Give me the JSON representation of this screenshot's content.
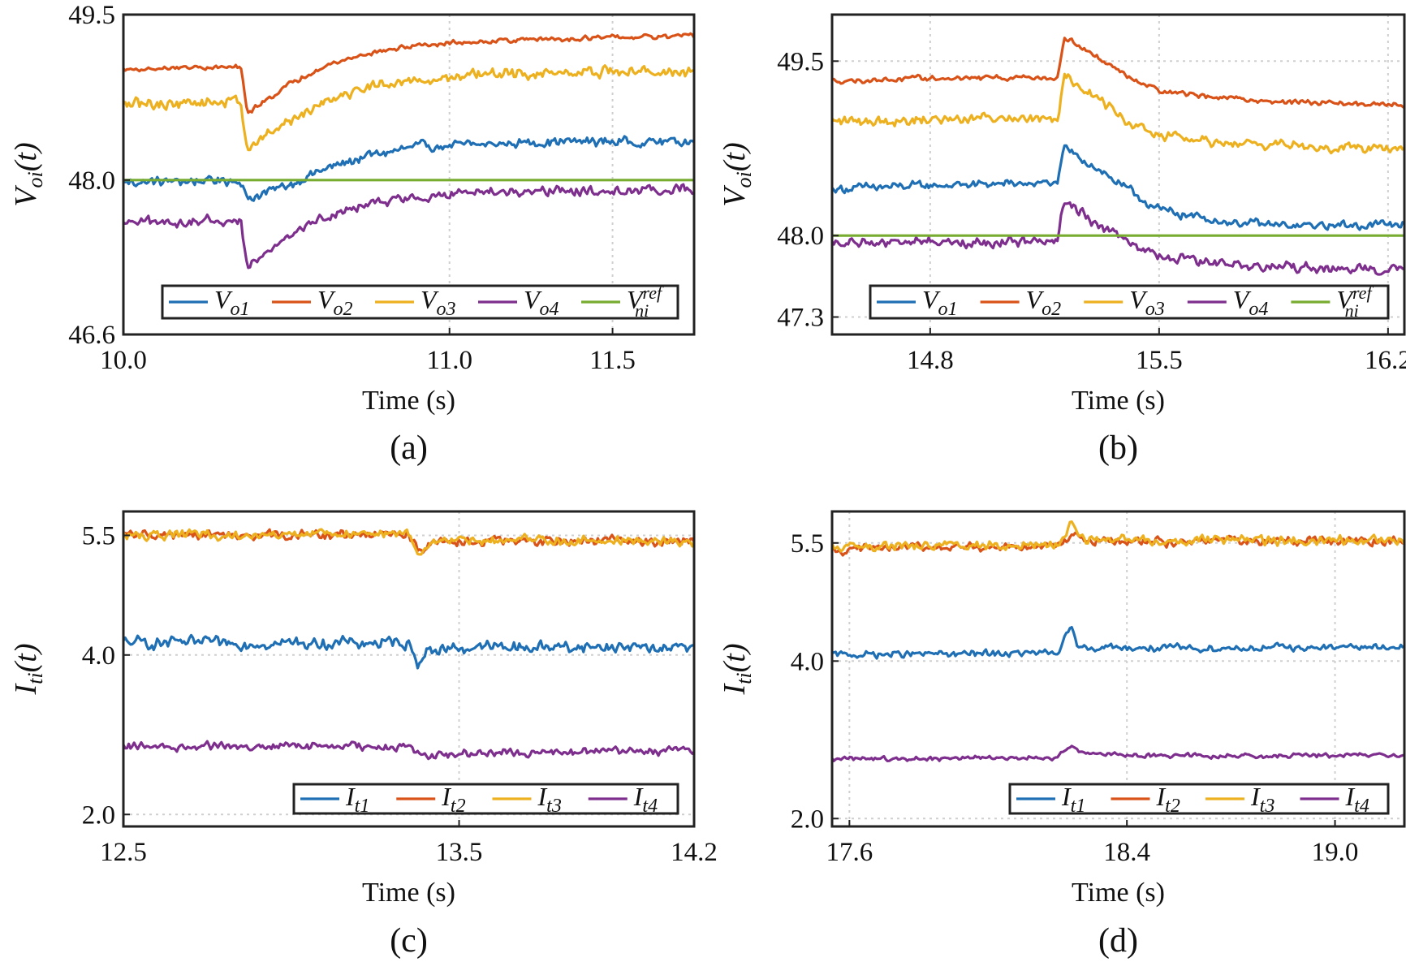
{
  "colors": {
    "blue": "#1f6fb5",
    "orange": "#d95319",
    "yellow": "#edb120",
    "purple": "#7e2f8e",
    "green": "#77ac30",
    "axis": "#222222",
    "grid": "#cfcfcf"
  },
  "chart_data": [
    {
      "type": "line",
      "caption": "(a)",
      "xlabel": "Time (s)",
      "ylabel": {
        "main": "V",
        "sub": "oi",
        "arg": "(t)"
      },
      "xlim": [
        10.0,
        11.75
      ],
      "ylim": [
        46.6,
        49.5
      ],
      "xticks": [
        {
          "v": 10.0,
          "label": "10.0"
        },
        {
          "v": 11.0,
          "label": "11.0"
        },
        {
          "v": 11.5,
          "label": "11.5"
        }
      ],
      "yticks": [
        {
          "v": 46.6,
          "label": "46.6"
        },
        {
          "v": 48.0,
          "label": "48.0"
        },
        {
          "v": 49.5,
          "label": "49.5"
        }
      ],
      "grid": true,
      "legend_position": "bottom",
      "series": [
        {
          "name": "V_o1",
          "legend": {
            "main": "V",
            "sub": "o1",
            "sup": ""
          },
          "color": "blue",
          "noise": 0.03,
          "x": [
            10.0,
            10.2,
            10.36,
            10.38,
            10.4,
            10.5,
            10.6,
            10.75,
            10.9,
            11.1,
            11.3,
            11.5,
            11.75
          ],
          "y": [
            47.98,
            47.99,
            48.0,
            47.82,
            47.85,
            47.95,
            48.08,
            48.22,
            48.3,
            48.32,
            48.35,
            48.35,
            48.35
          ]
        },
        {
          "name": "V_o2",
          "legend": {
            "main": "V",
            "sub": "o2",
            "sup": ""
          },
          "color": "orange",
          "noise": 0.015,
          "x": [
            10.0,
            10.2,
            10.36,
            10.38,
            10.4,
            10.5,
            10.6,
            10.75,
            10.9,
            11.1,
            11.3,
            11.5,
            11.75
          ],
          "y": [
            49.0,
            49.02,
            49.02,
            48.6,
            48.65,
            48.85,
            49.02,
            49.15,
            49.22,
            49.26,
            49.28,
            49.29,
            49.3
          ]
        },
        {
          "name": "V_o3",
          "legend": {
            "main": "V",
            "sub": "o3",
            "sup": ""
          },
          "color": "yellow",
          "noise": 0.035,
          "x": [
            10.0,
            10.2,
            10.36,
            10.38,
            10.4,
            10.5,
            10.6,
            10.75,
            10.9,
            11.1,
            11.3,
            11.5,
            11.75
          ],
          "y": [
            48.68,
            48.7,
            48.72,
            48.28,
            48.32,
            48.52,
            48.7,
            48.85,
            48.92,
            48.95,
            48.97,
            48.98,
            48.98
          ]
        },
        {
          "name": "V_o4",
          "legend": {
            "main": "V",
            "sub": "o4",
            "sup": ""
          },
          "color": "purple",
          "noise": 0.03,
          "x": [
            10.0,
            10.2,
            10.36,
            10.38,
            10.4,
            10.5,
            10.6,
            10.75,
            10.9,
            11.1,
            11.3,
            11.5,
            11.75
          ],
          "y": [
            47.6,
            47.62,
            47.63,
            47.22,
            47.28,
            47.5,
            47.65,
            47.78,
            47.85,
            47.88,
            47.9,
            47.9,
            47.92
          ]
        },
        {
          "name": "V_ni^ref",
          "legend": {
            "main": "V",
            "sub": "ni",
            "sup": "ref"
          },
          "color": "green",
          "noise": 0,
          "x": [
            10.0,
            11.75
          ],
          "y": [
            48.0,
            48.0
          ]
        }
      ]
    },
    {
      "type": "line",
      "caption": "(b)",
      "xlabel": "Time (s)",
      "ylabel": {
        "main": "V",
        "sub": "oi",
        "arg": "(t)"
      },
      "xlim": [
        14.5,
        16.25
      ],
      "ylim": [
        47.15,
        49.9
      ],
      "xticks": [
        {
          "v": 14.8,
          "label": "14.8"
        },
        {
          "v": 15.5,
          "label": "15.5"
        },
        {
          "v": 16.2,
          "label": "16.2"
        }
      ],
      "yticks": [
        {
          "v": 47.3,
          "label": "47.3"
        },
        {
          "v": 48.0,
          "label": "48.0"
        },
        {
          "v": 49.5,
          "label": "49.5"
        }
      ],
      "grid": true,
      "legend_position": "bottom",
      "series": [
        {
          "name": "V_o1",
          "legend": {
            "main": "V",
            "sub": "o1",
            "sup": ""
          },
          "color": "blue",
          "noise": 0.025,
          "x": [
            14.5,
            14.8,
            15.1,
            15.19,
            15.21,
            15.3,
            15.4,
            15.5,
            15.7,
            15.9,
            16.25
          ],
          "y": [
            48.4,
            48.43,
            48.45,
            48.45,
            48.75,
            48.6,
            48.4,
            48.22,
            48.12,
            48.08,
            48.1
          ]
        },
        {
          "name": "V_o2",
          "legend": {
            "main": "V",
            "sub": "o2",
            "sup": ""
          },
          "color": "orange",
          "noise": 0.015,
          "x": [
            14.5,
            14.8,
            15.1,
            15.19,
            15.21,
            15.3,
            15.4,
            15.5,
            15.7,
            15.9,
            16.25
          ],
          "y": [
            49.33,
            49.35,
            49.36,
            49.36,
            49.72,
            49.55,
            49.38,
            49.25,
            49.18,
            49.15,
            49.12
          ]
        },
        {
          "name": "V_o3",
          "legend": {
            "main": "V",
            "sub": "o3",
            "sup": ""
          },
          "color": "yellow",
          "noise": 0.03,
          "x": [
            14.5,
            14.8,
            15.1,
            15.19,
            15.21,
            15.3,
            15.4,
            15.5,
            15.7,
            15.9,
            16.25
          ],
          "y": [
            48.98,
            49.0,
            49.02,
            49.02,
            49.4,
            49.2,
            49.0,
            48.85,
            48.8,
            48.78,
            48.75
          ]
        },
        {
          "name": "V_o4",
          "legend": {
            "main": "V",
            "sub": "o4",
            "sup": ""
          },
          "color": "purple",
          "noise": 0.03,
          "x": [
            14.5,
            14.8,
            15.1,
            15.19,
            15.21,
            15.3,
            15.4,
            15.5,
            15.7,
            15.9,
            16.25
          ],
          "y": [
            47.93,
            47.95,
            47.95,
            47.95,
            48.3,
            48.12,
            47.95,
            47.82,
            47.75,
            47.72,
            47.7
          ]
        },
        {
          "name": "V_ni^ref",
          "legend": {
            "main": "V",
            "sub": "ni",
            "sup": "ref"
          },
          "color": "green",
          "noise": 0,
          "x": [
            14.5,
            16.25
          ],
          "y": [
            48.0,
            48.0
          ]
        }
      ]
    },
    {
      "type": "line",
      "caption": "(c)",
      "xlabel": "Time (s)",
      "ylabel": {
        "main": "I",
        "sub": "ti",
        "arg": "(t)"
      },
      "xlim": [
        12.5,
        14.2
      ],
      "ylim": [
        1.85,
        5.8
      ],
      "xticks": [
        {
          "v": 12.5,
          "label": "12.5"
        },
        {
          "v": 13.5,
          "label": "13.5"
        },
        {
          "v": 14.2,
          "label": "14.2"
        }
      ],
      "yticks": [
        {
          "v": 2.0,
          "label": "2.0"
        },
        {
          "v": 4.0,
          "label": "4.0"
        },
        {
          "v": 5.5,
          "label": "5.5"
        }
      ],
      "grid": true,
      "legend_position": "bottom-right",
      "series": [
        {
          "name": "I_t1",
          "legend": {
            "main": "I",
            "sub": "t1",
            "sup": ""
          },
          "color": "blue",
          "noise": 0.05,
          "x": [
            12.5,
            13.35,
            13.38,
            13.4,
            13.45,
            13.6,
            14.2
          ],
          "y": [
            4.15,
            4.15,
            3.9,
            4.05,
            4.08,
            4.1,
            4.1
          ]
        },
        {
          "name": "I_t2",
          "legend": {
            "main": "I",
            "sub": "t2",
            "sup": ""
          },
          "color": "orange",
          "noise": 0.04,
          "x": [
            12.5,
            13.35,
            13.38,
            13.42,
            13.6,
            14.2
          ],
          "y": [
            5.5,
            5.5,
            5.3,
            5.42,
            5.43,
            5.43
          ]
        },
        {
          "name": "I_t3",
          "legend": {
            "main": "I",
            "sub": "t3",
            "sup": ""
          },
          "color": "yellow",
          "noise": 0.04,
          "x": [
            12.5,
            13.35,
            13.38,
            13.42,
            13.6,
            14.2
          ],
          "y": [
            5.5,
            5.52,
            5.25,
            5.42,
            5.44,
            5.44
          ]
        },
        {
          "name": "I_t4",
          "legend": {
            "main": "I",
            "sub": "t4",
            "sup": ""
          },
          "color": "purple",
          "noise": 0.035,
          "x": [
            12.5,
            13.35,
            13.4,
            13.6,
            14.2
          ],
          "y": [
            2.85,
            2.85,
            2.75,
            2.78,
            2.8
          ]
        }
      ]
    },
    {
      "type": "line",
      "caption": "(d)",
      "xlabel": "Time (s)",
      "ylabel": {
        "main": "I",
        "sub": "ti",
        "arg": "(t)"
      },
      "xlim": [
        17.55,
        19.2
      ],
      "ylim": [
        1.9,
        5.9
      ],
      "xticks": [
        {
          "v": 17.6,
          "label": "17.6"
        },
        {
          "v": 18.4,
          "label": "18.4"
        },
        {
          "v": 19.0,
          "label": "19.0"
        }
      ],
      "yticks": [
        {
          "v": 2.0,
          "label": "2.0"
        },
        {
          "v": 4.0,
          "label": "4.0"
        },
        {
          "v": 5.5,
          "label": "5.5"
        }
      ],
      "grid": true,
      "legend_position": "bottom-right",
      "series": [
        {
          "name": "I_t1",
          "legend": {
            "main": "I",
            "sub": "t1",
            "sup": ""
          },
          "color": "blue",
          "noise": 0.03,
          "x": [
            17.55,
            18.2,
            18.24,
            18.26,
            18.3,
            18.5,
            19.2
          ],
          "y": [
            4.08,
            4.1,
            4.42,
            4.15,
            4.18,
            4.16,
            4.18
          ]
        },
        {
          "name": "I_t2",
          "legend": {
            "main": "I",
            "sub": "t2",
            "sup": ""
          },
          "color": "orange",
          "noise": 0.04,
          "x": [
            17.55,
            18.2,
            18.24,
            18.28,
            18.5,
            19.2
          ],
          "y": [
            5.42,
            5.47,
            5.62,
            5.52,
            5.52,
            5.52
          ]
        },
        {
          "name": "I_t3",
          "legend": {
            "main": "I",
            "sub": "t3",
            "sup": ""
          },
          "color": "yellow",
          "noise": 0.04,
          "x": [
            17.55,
            18.2,
            18.24,
            18.28,
            18.5,
            19.2
          ],
          "y": [
            5.45,
            5.48,
            5.75,
            5.55,
            5.53,
            5.53
          ]
        },
        {
          "name": "I_t4",
          "legend": {
            "main": "I",
            "sub": "t4",
            "sup": ""
          },
          "color": "purple",
          "noise": 0.02,
          "x": [
            17.55,
            18.2,
            18.24,
            18.28,
            18.5,
            19.2
          ],
          "y": [
            2.75,
            2.78,
            2.92,
            2.83,
            2.8,
            2.8
          ]
        }
      ]
    }
  ]
}
